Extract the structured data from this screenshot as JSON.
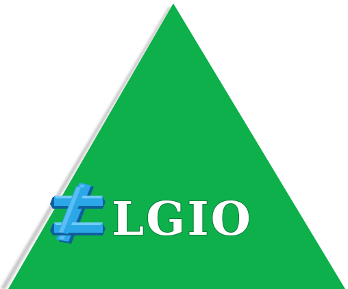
{
  "logo": {
    "text": "LGIO",
    "glyph_icon": "not-equal-sign-icon",
    "colors": {
      "triangle_fill": "#0DB04B",
      "triangle_shadow": "#C9C9C9",
      "text_fill": "#FFFFFF",
      "text_outline": "#0B7F3A",
      "glyph_fill": "#2BA7E8",
      "glyph_edge": "#0E5F9C",
      "glyph_highlight": "#7FD2FF"
    }
  }
}
